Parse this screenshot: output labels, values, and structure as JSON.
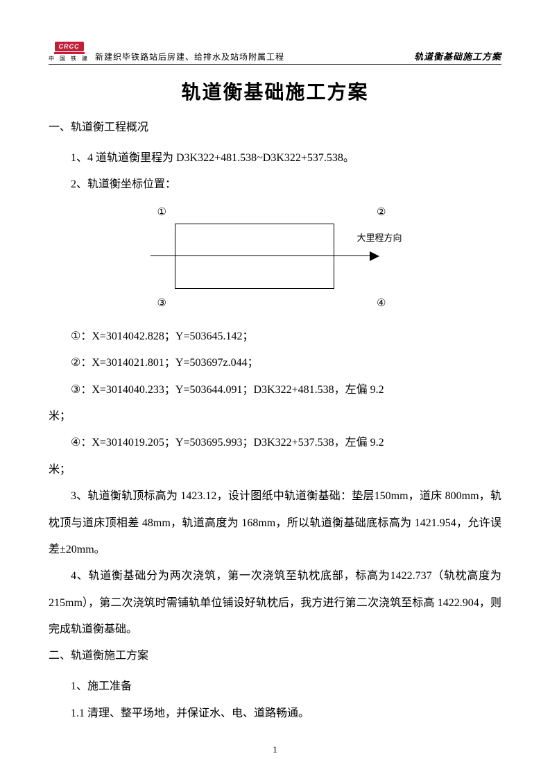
{
  "header": {
    "logo_top": "CRCC",
    "logo_bottom": "中 国 铁 建",
    "left_text": "新建织毕铁路站后房建、给排水及站场附属工程",
    "right_text": "轨道衡基础施工方案"
  },
  "title": "轨道衡基础施工方案",
  "section1": {
    "head": "一、轨道衡工程概况",
    "p1": "1、4 道轨道衡里程为 D3K322+481.538~D3K322+537.538。",
    "p2": "2、轨道衡坐标位置："
  },
  "diagram": {
    "corner1": "①",
    "corner2": "②",
    "corner3": "③",
    "corner4": "④",
    "arrow_label": "大里程方向"
  },
  "coords": {
    "l1": "①：X=3014042.828；Y=503645.142；",
    "l2": "②：X=3014021.801；Y=503697z.044；",
    "l3a": "③：X=3014040.233；Y=503644.091；D3K322+481.538，左偏 9.2",
    "l3b": "米；",
    "l4a": "④：X=3014019.205；Y=503695.993；D3K322+537.538，左偏 9.2",
    "l4b": "米；"
  },
  "paras": {
    "p3": "3、轨道衡轨顶标高为 1423.12，设计图纸中轨道衡基础：垫层150mm，道床 800mm，轨枕顶与道床顶相差 48mm，轨道高度为 168mm，所以轨道衡基础底标高为 1421.954，允许误差±20mm。",
    "p4": "4、轨道衡基础分为两次浇筑，第一次浇筑至轨枕底部，标高为1422.737（轨枕高度为 215mm），第二次浇筑时需铺轨单位铺设好轨枕后，我方进行第二次浇筑至标高 1422.904，则完成轨道衡基础。"
  },
  "section2": {
    "head": "二、轨道衡施工方案",
    "p1": "1、施工准备",
    "p2": "1.1 清理、整平场地，并保证水、电、道路畅通。"
  },
  "page_num": "1"
}
